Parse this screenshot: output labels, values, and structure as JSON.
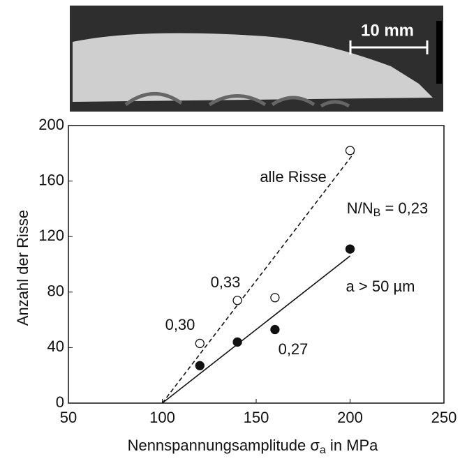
{
  "chart_data": {
    "type": "scatter",
    "photo_label": "10 mm",
    "xlabel": [
      "Nennspannungsamplitude σ",
      "a",
      " in MPa"
    ],
    "ylabel": "Anzahl der Risse",
    "xlim": [
      50,
      250
    ],
    "xticks": [
      50,
      100,
      150,
      200,
      250
    ],
    "ylim": [
      0,
      200
    ],
    "yticks": [
      0,
      40,
      80,
      120,
      160,
      200
    ],
    "grid": false,
    "series": [
      {
        "name": "alle Risse",
        "color": "#111111",
        "marker": "open",
        "x": [
          120,
          140,
          160,
          200
        ],
        "values": [
          43,
          74,
          76,
          182
        ],
        "fit": {
          "x": [
            100,
            202
          ],
          "values": [
            0,
            180
          ],
          "dashed": true
        }
      },
      {
        "name": "a > 50 µm",
        "color": "#111111",
        "marker": "filled",
        "x": [
          120,
          140,
          160,
          200
        ],
        "values": [
          27,
          44,
          53,
          111
        ],
        "fit": {
          "x": [
            100,
            200
          ],
          "values": [
            0,
            106
          ],
          "dashed": false
        }
      }
    ],
    "annotations": [
      {
        "text": [
          "N/N",
          "B",
          " = 0,23"
        ]
      },
      {
        "text": "0,33"
      },
      {
        "text": "0,30"
      },
      {
        "text": "0,27"
      }
    ]
  }
}
